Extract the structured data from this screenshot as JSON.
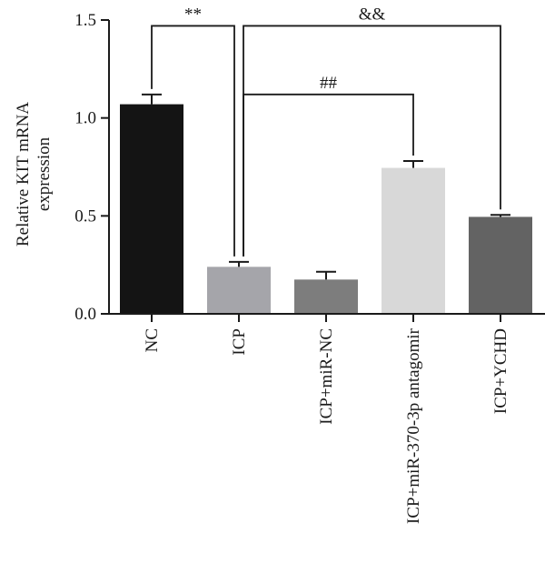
{
  "chart_data": {
    "type": "bar",
    "categories": [
      "NC",
      "ICP",
      "ICP+miR-NC",
      "ICP+miR-370-3p antagomir",
      "ICP+YCHD"
    ],
    "values": [
      1.07,
      0.24,
      0.175,
      0.745,
      0.495
    ],
    "errors": [
      0.05,
      0.025,
      0.04,
      0.035,
      0.01
    ],
    "bar_colors": [
      "#141414",
      "#a5a5aa",
      "#7d7d7d",
      "#d8d8d8",
      "#636363"
    ],
    "ylabel_lines": [
      "Relative KIT mRNA",
      "expression"
    ],
    "ylim": [
      0,
      1.5
    ],
    "yticks": [
      0.0,
      0.5,
      1.0,
      1.5
    ],
    "ytick_labels": [
      "0.0",
      "0.5",
      "1.0",
      "1.5"
    ],
    "significance": [
      {
        "from": 0,
        "to": 1,
        "label": "**",
        "level": 1.47
      },
      {
        "from": 1,
        "to": 4,
        "label": "&&",
        "level": 1.47
      },
      {
        "from": 1,
        "to": 3,
        "label": "##",
        "level": 1.12
      }
    ],
    "grid": false,
    "legend": "none"
  }
}
